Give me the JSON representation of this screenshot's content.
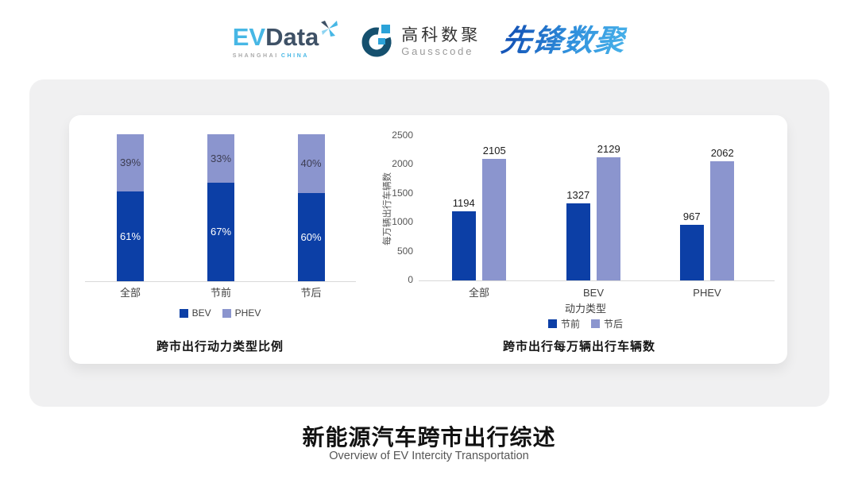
{
  "header": {
    "evdata": {
      "ev": "EV",
      "data": "Data",
      "shanghai": "SHANGHAI",
      "china": "CHINA"
    },
    "gausscode": {
      "name_cn": "高科数聚",
      "name_en": "Gausscode"
    },
    "pioneer": {
      "name": "先锋数聚"
    }
  },
  "colors": {
    "series_dark": "#0c3fa6",
    "series_light": "#8b95ce",
    "card_bg": "#f0f0f1"
  },
  "chart_data": [
    {
      "type": "bar",
      "subtype": "stacked-100-percent",
      "title": "跨市出行动力类型比例",
      "categories": [
        "全部",
        "节前",
        "节后"
      ],
      "series": [
        {
          "name": "BEV",
          "values": [
            61,
            67,
            60
          ],
          "color": "#0c3fa6"
        },
        {
          "name": "PHEV",
          "values": [
            39,
            33,
            40
          ],
          "color": "#8b95ce"
        }
      ],
      "value_format": "percent",
      "legend_position": "bottom",
      "grid": false
    },
    {
      "type": "bar",
      "subtype": "grouped",
      "title": "跨市出行每万辆出行车辆数",
      "categories": [
        "全部",
        "BEV",
        "PHEV"
      ],
      "xlabel": "动力类型",
      "ylabel": "每万辆出行车辆数",
      "ylim": [
        0,
        2500
      ],
      "yticks": [
        0,
        500,
        1000,
        1500,
        2000,
        2500
      ],
      "series": [
        {
          "name": "节前",
          "values": [
            1194,
            1327,
            967
          ],
          "color": "#0c3fa6"
        },
        {
          "name": "节后",
          "values": [
            2105,
            2129,
            2062
          ],
          "color": "#8b95ce"
        }
      ],
      "legend_position": "bottom",
      "grid": false
    }
  ],
  "footer": {
    "title_zh": "新能源汽车跨市出行综述",
    "title_en": "Overview of EV Intercity Transportation"
  }
}
